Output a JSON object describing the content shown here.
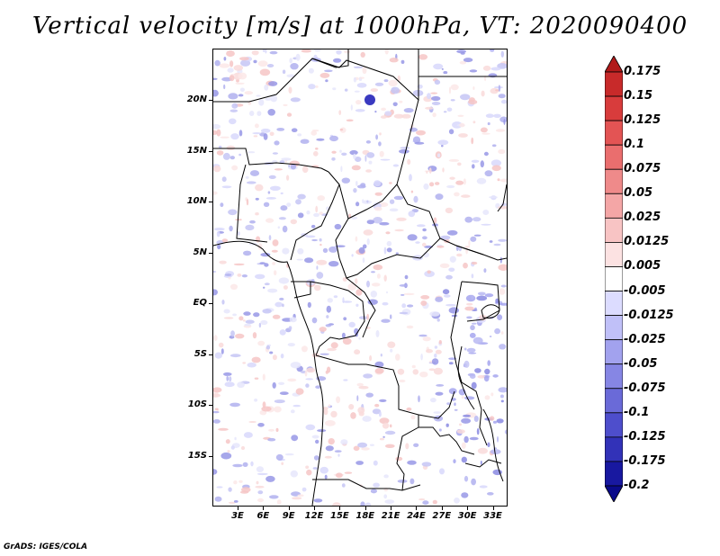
{
  "title": "Vertical velocity [m/s] at 1000hPa, VT: 2020090400",
  "credit": "GrADS: IGES/COLA",
  "lat_labels": [
    {
      "text": "20N",
      "lat": 20
    },
    {
      "text": "15N",
      "lat": 15
    },
    {
      "text": "10N",
      "lat": 10
    },
    {
      "text": "5N",
      "lat": 5
    },
    {
      "text": "EQ",
      "lat": 0
    },
    {
      "text": "5S",
      "lat": -5
    },
    {
      "text": "10S",
      "lat": -10
    },
    {
      "text": "15S",
      "lat": -15
    }
  ],
  "lon_labels": [
    {
      "text": "3E",
      "lon": 3
    },
    {
      "text": "6E",
      "lon": 6
    },
    {
      "text": "9E",
      "lon": 9
    },
    {
      "text": "12E",
      "lon": 12
    },
    {
      "text": "15E",
      "lon": 15
    },
    {
      "text": "18E",
      "lon": 18
    },
    {
      "text": "21E",
      "lon": 21
    },
    {
      "text": "24E",
      "lon": 24
    },
    {
      "text": "27E",
      "lon": 27
    },
    {
      "text": "30E",
      "lon": 30
    },
    {
      "text": "33E",
      "lon": 33
    }
  ],
  "colorbar": {
    "levels": [
      "0.175",
      "0.15",
      "0.125",
      "0.1",
      "0.075",
      "0.05",
      "0.025",
      "0.0125",
      "0.005",
      "-0.005",
      "-0.0125",
      "-0.025",
      "-0.05",
      "-0.075",
      "-0.1",
      "-0.125",
      "-0.175",
      "-0.2"
    ],
    "colors": [
      "#b11a1a",
      "#c82a2a",
      "#d83c3c",
      "#e35454",
      "#ea6e6e",
      "#ef8a8a",
      "#f4a6a6",
      "#f8c4c4",
      "#fce2e2",
      "#ffffff",
      "#dcdcff",
      "#c0c0f8",
      "#a2a2ee",
      "#8686e4",
      "#6a6ad8",
      "#4e4ecc",
      "#3232b8",
      "#1818a0",
      "#0a0a8a"
    ]
  }
}
